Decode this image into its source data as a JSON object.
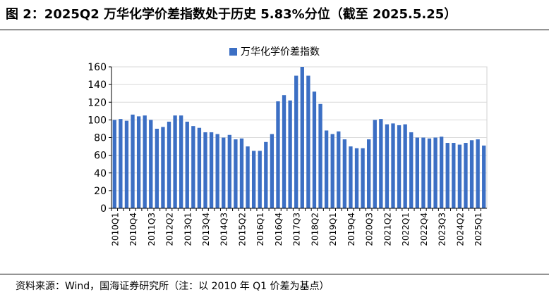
{
  "title": "图 2：2025Q2 万华化学价差指数处于历史 5.83%分位（截至 2025.5.25）",
  "source": "资料来源：Wind，国海证券研究所（注：以 2010 年 Q1 价差为基点）",
  "chart_data": {
    "type": "bar",
    "series": [
      {
        "name": "万华化学价差指数",
        "color": "#3C6FC4",
        "values": [
          100,
          101,
          99,
          106,
          104,
          105,
          100,
          90,
          92,
          98,
          105,
          105,
          98,
          93,
          91,
          86,
          86,
          84,
          80,
          83,
          78,
          79,
          70,
          65,
          65,
          75,
          84,
          121,
          128,
          122,
          150,
          160,
          150,
          132,
          118,
          88,
          84,
          87,
          78,
          70,
          68,
          68,
          78,
          100,
          101,
          95,
          96,
          94,
          95,
          86,
          80,
          80,
          79,
          80,
          81,
          74,
          74,
          72,
          74,
          77,
          78,
          71
        ]
      }
    ],
    "categories": [
      "2010Q1",
      "2010Q2",
      "2010Q3",
      "2010Q4",
      "2011Q1",
      "2011Q2",
      "2011Q3",
      "2011Q4",
      "2012Q1",
      "2012Q2",
      "2012Q3",
      "2012Q4",
      "2013Q1",
      "2013Q2",
      "2013Q3",
      "2013Q4",
      "2014Q1",
      "2014Q2",
      "2014Q3",
      "2014Q4",
      "2015Q1",
      "2015Q2",
      "2015Q3",
      "2015Q4",
      "2016Q1",
      "2016Q2",
      "2016Q3",
      "2016Q4",
      "2017Q1",
      "2017Q2",
      "2017Q3",
      "2017Q4",
      "2018Q1",
      "2018Q2",
      "2018Q3",
      "2018Q4",
      "2019Q1",
      "2019Q2",
      "2019Q3",
      "2019Q4",
      "2020Q1",
      "2020Q2",
      "2020Q3",
      "2020Q4",
      "2021Q1",
      "2021Q2",
      "2021Q3",
      "2021Q4",
      "2022Q1",
      "2022Q2",
      "2022Q3",
      "2022Q4",
      "2023Q1",
      "2023Q2",
      "2023Q3",
      "2023Q4",
      "2024Q1",
      "2024Q2",
      "2024Q3",
      "2024Q4",
      "2025Q1",
      "2025Q2"
    ],
    "x_tick_labels": [
      "2010Q1",
      "2010Q4",
      "2011Q3",
      "2012Q2",
      "2013Q1",
      "2013Q4",
      "2014Q3",
      "2015Q2",
      "2016Q1",
      "2016Q4",
      "2017Q3",
      "2018Q2",
      "2019Q1",
      "2019Q4",
      "2020Q3",
      "2021Q2",
      "2022Q1",
      "2022Q4",
      "2023Q3",
      "2024Q2",
      "2025Q1"
    ],
    "y_ticks": [
      0,
      20,
      40,
      60,
      80,
      100,
      120,
      140,
      160
    ],
    "ylim": [
      0,
      160
    ],
    "grid": true,
    "legend_position": "top"
  }
}
